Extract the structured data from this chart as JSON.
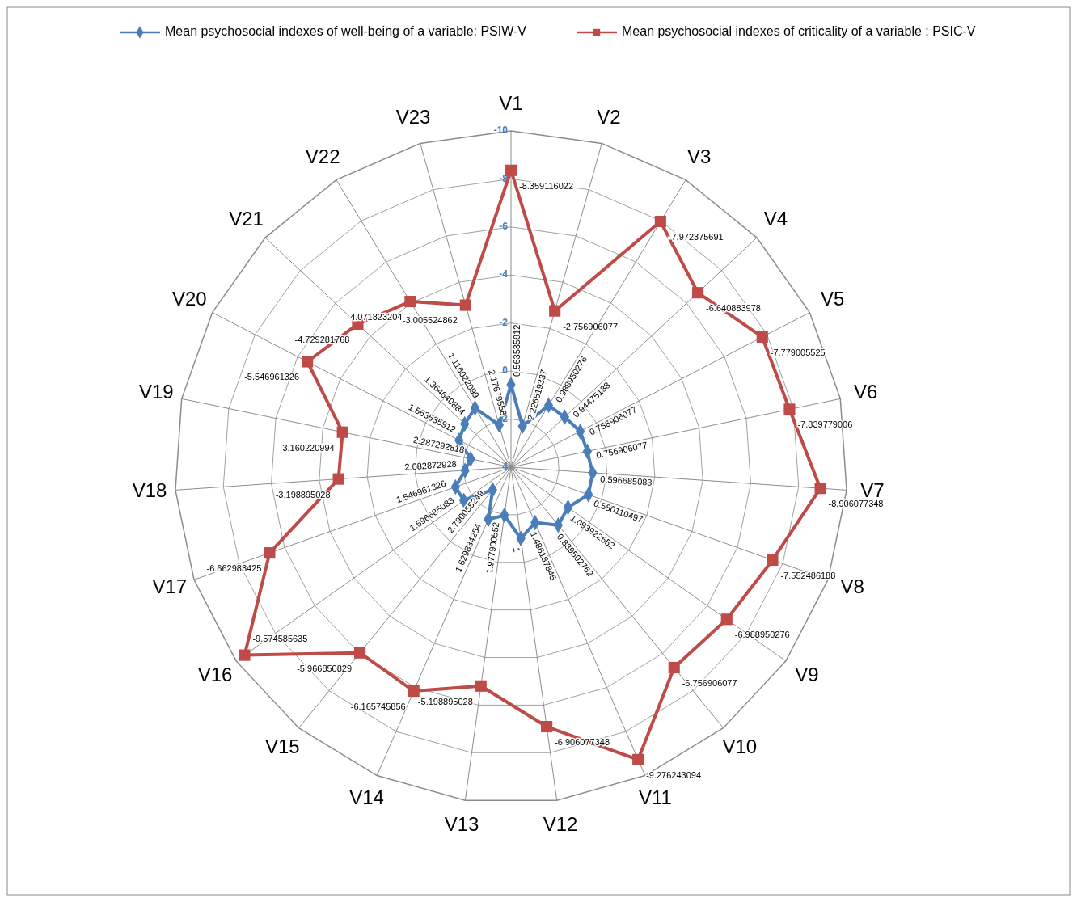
{
  "chart_data": {
    "type": "radar",
    "categories": [
      "V1",
      "V2",
      "V3",
      "V4",
      "V5",
      "V6",
      "V7",
      "V8",
      "V9",
      "V10",
      "V11",
      "V12",
      "V13",
      "V14",
      "V15",
      "V16",
      "V17",
      "V18",
      "V19",
      "V20",
      "V21",
      "V22",
      "V23"
    ],
    "ylim": [
      4,
      -10
    ],
    "yticks": [
      -10,
      -8,
      -6,
      -4,
      -2,
      0,
      2,
      4
    ],
    "grid": true,
    "legend": "top",
    "data_labels": true,
    "series": [
      {
        "name": "Mean psychosocial indexes of well-being of a variable: PSIW-V",
        "color": "#4a7ebb",
        "marker": "diamond",
        "values": [
          0.563535912,
          2.226519337,
          0.988950276,
          0.94475138,
          0.756906077,
          0.756906077,
          0.596685083,
          0.580110497,
          1.093922652,
          0.889502762,
          1.486187845,
          1,
          1.977900552,
          1.629834254,
          2.790055249,
          1.596685083,
          1.546961326,
          2.082872928,
          2.287292818,
          1.563535912,
          1.364640884,
          1.116022099,
          2.17679558
        ]
      },
      {
        "name": "Mean psychosocial indexes of criticality of a variable : PSIC-V",
        "color": "#be4b48",
        "marker": "square",
        "values": [
          -8.359116022,
          -2.756906077,
          -7.972375691,
          -6.640883978,
          -7.779005525,
          -7.839779006,
          -8.906077348,
          -7.552486188,
          -6.988950276,
          -6.756906077,
          -9.276243094,
          -6.906077348,
          -5.198895028,
          -6.165745856,
          -5.966850829,
          -9.574585635,
          -6.662983425,
          -3.198895028,
          -3.160220994,
          -5.546961326,
          -4.729281768,
          -4.071823204,
          -3.005524862
        ]
      }
    ]
  }
}
